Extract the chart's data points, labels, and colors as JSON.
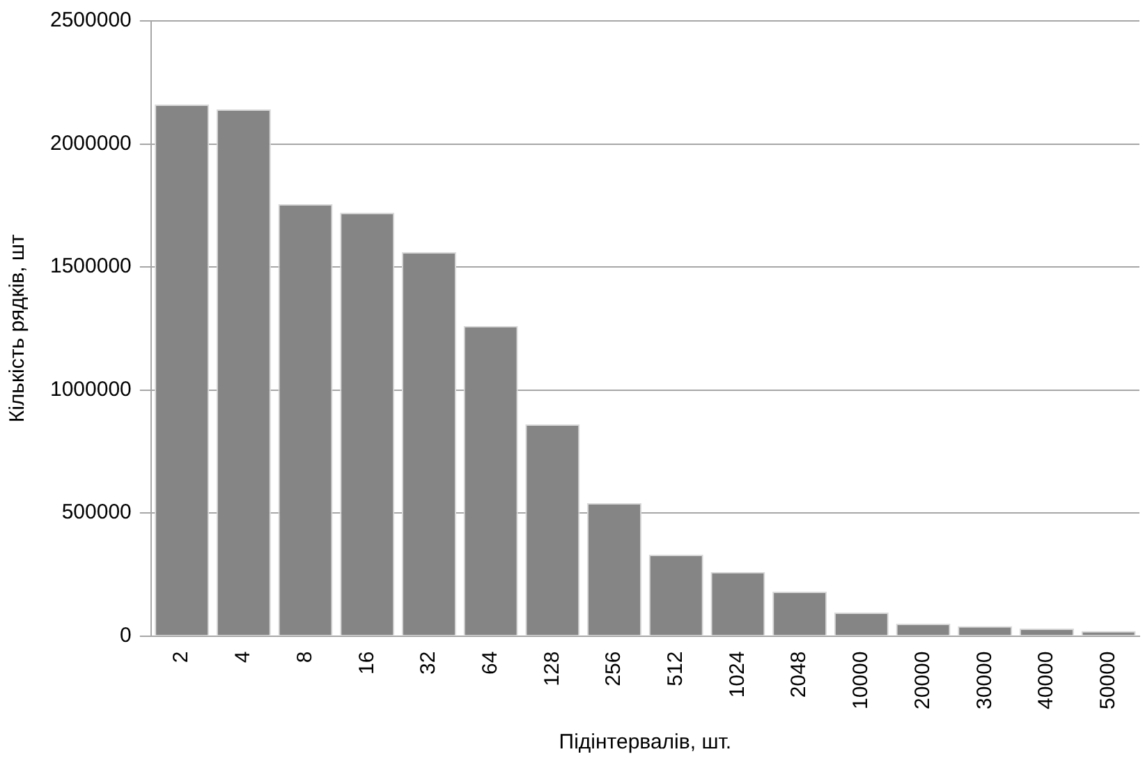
{
  "chart_data": {
    "type": "bar",
    "xlabel": "Підінтервалів, шт.",
    "ylabel": "Кількість рядків, шт",
    "categories": [
      "2",
      "4",
      "8",
      "16",
      "32",
      "64",
      "128",
      "256",
      "512",
      "1024",
      "2048",
      "10000",
      "20000",
      "30000",
      "40000",
      "50000"
    ],
    "values": [
      2160000,
      2140000,
      1755000,
      1720000,
      1560000,
      1260000,
      860000,
      540000,
      330000,
      260000,
      180000,
      95000,
      50000,
      40000,
      30000,
      20000
    ],
    "color": "#858585",
    "ylim": [
      0,
      2500000
    ],
    "yticks": [
      0,
      500000,
      1000000,
      1500000,
      2000000,
      2500000
    ],
    "grid": "y",
    "legend": false
  }
}
